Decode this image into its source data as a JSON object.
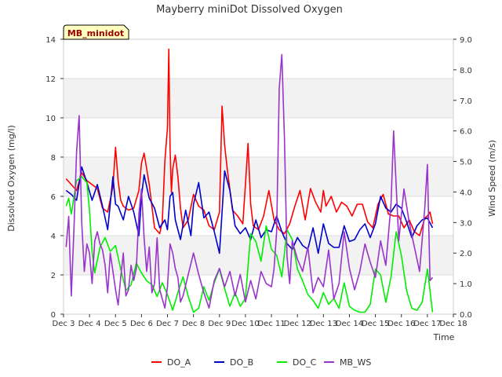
{
  "chart_data": {
    "type": "line",
    "title": "Mayberry miniDot Dissolved Oxygen",
    "xlabel": "Time",
    "ylabel": "Dissolved Oxygen (mg/l)",
    "y2label": "Wind Speed (m/s)",
    "site_badge": "MB_minidot",
    "xlim": [
      3,
      18
    ],
    "ylim": [
      0,
      14
    ],
    "y2lim": [
      0,
      9
    ],
    "x_tick_labels": [
      "Dec 3",
      "Dec 4",
      "Dec 5",
      "Dec 6",
      "Dec 7",
      "Dec 8",
      "Dec 9",
      "Dec 10",
      "Dec 11",
      "Dec 12",
      "Dec 13",
      "Dec 14",
      "Dec 15",
      "Dec 16",
      "Dec 17",
      "Dec 18"
    ],
    "y_tick_labels": [
      "0",
      "2",
      "4",
      "6",
      "8",
      "10",
      "12",
      "14"
    ],
    "y2_tick_labels": [
      "0.0",
      "1.0",
      "2.0",
      "3.0",
      "4.0",
      "5.0",
      "6.0",
      "7.0",
      "8.0",
      "9.0"
    ],
    "background_bands": true,
    "legend_position": "bottom",
    "series": [
      {
        "name": "DO_A",
        "color": "#ff0000",
        "axis": "left",
        "x": [
          3.1,
          3.3,
          3.5,
          3.7,
          3.9,
          4.1,
          4.3,
          4.5,
          4.7,
          4.9,
          5.0,
          5.1,
          5.2,
          5.3,
          5.5,
          5.7,
          5.9,
          6.0,
          6.1,
          6.3,
          6.5,
          6.7,
          6.8,
          6.9,
          7.0,
          7.05,
          7.1,
          7.15,
          7.2,
          7.3,
          7.4,
          7.5,
          7.6,
          7.8,
          8.0,
          8.2,
          8.4,
          8.6,
          8.8,
          9.0,
          9.1,
          9.2,
          9.3,
          9.5,
          9.7,
          9.9,
          10.0,
          10.1,
          10.2,
          10.3,
          10.5,
          10.7,
          10.9,
          11.1,
          11.3,
          11.5,
          11.7,
          11.9,
          12.1,
          12.3,
          12.5,
          12.7,
          12.9,
          13.0,
          13.1,
          13.3,
          13.5,
          13.7,
          13.9,
          14.1,
          14.3,
          14.5,
          14.7,
          14.9,
          15.1,
          15.3,
          15.5,
          15.7,
          15.9,
          16.1,
          16.3,
          16.5,
          16.7,
          16.9,
          17.0,
          17.1,
          17.2
        ],
        "y": [
          6.9,
          6.6,
          6.3,
          7.2,
          6.8,
          6.6,
          6.4,
          5.4,
          5.2,
          6.5,
          8.5,
          6.8,
          5.8,
          5.5,
          5.3,
          5.4,
          6.3,
          7.7,
          8.2,
          6.6,
          4.4,
          4.1,
          4.7,
          7.8,
          9.5,
          13.5,
          8.5,
          6.2,
          7.4,
          8.1,
          7.0,
          5.4,
          4.4,
          4.8,
          6.1,
          5.5,
          5.3,
          4.5,
          4.3,
          5.2,
          10.6,
          8.6,
          7.4,
          5.3,
          5.0,
          4.6,
          6.6,
          8.7,
          5.6,
          4.5,
          4.3,
          5.0,
          6.3,
          4.8,
          4.3,
          4.1,
          4.6,
          5.5,
          6.3,
          4.8,
          6.4,
          5.7,
          5.2,
          6.3,
          5.5,
          6.0,
          5.2,
          5.7,
          5.5,
          5.0,
          5.6,
          5.6,
          4.7,
          4.4,
          5.6,
          6.1,
          5.1,
          5.0,
          5.0,
          4.4,
          4.8,
          4.2,
          4.0,
          4.9,
          5.0,
          5.2,
          4.6
        ]
      },
      {
        "name": "DO_B",
        "color": "#0000cc",
        "axis": "left",
        "x": [
          3.1,
          3.3,
          3.5,
          3.7,
          3.9,
          4.1,
          4.3,
          4.5,
          4.7,
          4.9,
          5.0,
          5.1,
          5.3,
          5.5,
          5.7,
          5.9,
          6.0,
          6.1,
          6.3,
          6.5,
          6.7,
          6.9,
          7.0,
          7.1,
          7.2,
          7.3,
          7.5,
          7.7,
          7.9,
          8.0,
          8.2,
          8.4,
          8.6,
          8.8,
          9.0,
          9.2,
          9.4,
          9.6,
          9.8,
          10.0,
          10.2,
          10.4,
          10.6,
          10.8,
          11.0,
          11.2,
          11.4,
          11.6,
          11.8,
          12.0,
          12.2,
          12.4,
          12.6,
          12.8,
          13.0,
          13.2,
          13.4,
          13.6,
          13.8,
          14.0,
          14.2,
          14.4,
          14.6,
          14.8,
          15.0,
          15.2,
          15.4,
          15.6,
          15.8,
          16.0,
          16.2,
          16.4,
          16.6,
          16.8,
          17.0,
          17.2
        ],
        "y": [
          6.3,
          6.1,
          5.8,
          7.5,
          6.7,
          5.8,
          6.6,
          5.5,
          4.3,
          7.0,
          5.6,
          5.5,
          4.8,
          6.0,
          5.2,
          4.0,
          6.0,
          7.1,
          5.9,
          5.4,
          4.4,
          4.8,
          4.3,
          6.0,
          6.2,
          4.8,
          3.8,
          5.3,
          4.0,
          5.6,
          6.7,
          4.9,
          5.2,
          4.2,
          3.1,
          7.3,
          6.3,
          4.5,
          4.1,
          4.4,
          3.8,
          4.8,
          3.9,
          4.3,
          4.2,
          5.0,
          4.2,
          3.6,
          3.3,
          3.9,
          3.5,
          3.3,
          4.4,
          3.1,
          4.6,
          3.6,
          3.4,
          3.4,
          4.5,
          3.7,
          3.8,
          4.3,
          4.6,
          3.9,
          4.6,
          6.0,
          5.4,
          5.2,
          5.6,
          5.4,
          4.7,
          3.9,
          4.5,
          4.8,
          4.9,
          4.4
        ]
      },
      {
        "name": "DO_C",
        "color": "#00ee00",
        "axis": "left",
        "x": [
          3.1,
          3.2,
          3.3,
          3.5,
          3.7,
          3.9,
          4.0,
          4.1,
          4.2,
          4.4,
          4.6,
          4.8,
          5.0,
          5.2,
          5.4,
          5.6,
          5.8,
          6.0,
          6.2,
          6.4,
          6.6,
          6.8,
          7.0,
          7.2,
          7.4,
          7.6,
          7.8,
          8.0,
          8.2,
          8.4,
          8.6,
          8.8,
          9.0,
          9.2,
          9.4,
          9.6,
          9.8,
          10.0,
          10.2,
          10.4,
          10.6,
          10.8,
          11.0,
          11.2,
          11.4,
          11.6,
          11.8,
          12.0,
          12.2,
          12.4,
          12.6,
          12.8,
          13.0,
          13.2,
          13.4,
          13.6,
          13.8,
          14.0,
          14.2,
          14.4,
          14.6,
          14.8,
          15.0,
          15.2,
          15.4,
          15.6,
          15.8,
          16.0,
          16.2,
          16.4,
          16.6,
          16.8,
          17.0,
          17.2
        ],
        "y": [
          5.5,
          5.9,
          5.1,
          6.8,
          7.0,
          6.7,
          5.3,
          3.2,
          2.1,
          3.4,
          3.9,
          3.2,
          3.5,
          2.3,
          1.2,
          1.5,
          2.6,
          2.1,
          1.7,
          1.5,
          0.9,
          1.6,
          1.0,
          0.2,
          1.1,
          1.9,
          0.9,
          0.1,
          0.3,
          1.4,
          0.7,
          1.6,
          2.3,
          1.3,
          0.4,
          1.1,
          0.4,
          0.8,
          4.1,
          3.7,
          2.7,
          4.5,
          3.3,
          3.0,
          1.9,
          4.3,
          3.8,
          2.3,
          1.7,
          1.0,
          0.7,
          0.3,
          1.1,
          0.5,
          0.8,
          0.3,
          1.6,
          0.4,
          0.2,
          0.1,
          0.1,
          0.5,
          2.3,
          2.0,
          0.6,
          1.9,
          4.2,
          3.0,
          1.2,
          0.3,
          0.2,
          0.6,
          2.3,
          0.1
        ]
      },
      {
        "name": "MB_WS",
        "color": "#9933cc",
        "axis": "right",
        "x": [
          3.1,
          3.2,
          3.3,
          3.4,
          3.5,
          3.6,
          3.7,
          3.8,
          3.9,
          4.0,
          4.1,
          4.2,
          4.3,
          4.4,
          4.5,
          4.6,
          4.7,
          4.8,
          4.9,
          5.0,
          5.1,
          5.2,
          5.3,
          5.4,
          5.5,
          5.6,
          5.7,
          5.8,
          5.9,
          6.0,
          6.1,
          6.2,
          6.3,
          6.4,
          6.5,
          6.6,
          6.7,
          6.8,
          6.9,
          7.0,
          7.1,
          7.2,
          7.3,
          7.4,
          7.5,
          7.6,
          7.8,
          8.0,
          8.2,
          8.4,
          8.6,
          8.8,
          9.0,
          9.2,
          9.4,
          9.6,
          9.8,
          10.0,
          10.2,
          10.4,
          10.6,
          10.8,
          11.0,
          11.1,
          11.2,
          11.3,
          11.4,
          11.5,
          11.6,
          11.7,
          11.8,
          12.0,
          12.2,
          12.4,
          12.6,
          12.8,
          13.0,
          13.2,
          13.4,
          13.6,
          13.8,
          14.0,
          14.2,
          14.4,
          14.6,
          14.8,
          15.0,
          15.2,
          15.4,
          15.6,
          15.7,
          15.9,
          16.1,
          16.3,
          16.5,
          16.7,
          16.9,
          17.0,
          17.1,
          17.2
        ],
        "y": [
          2.2,
          3.2,
          0.6,
          2.8,
          5.3,
          6.5,
          3.0,
          1.4,
          2.3,
          2.0,
          1.0,
          2.4,
          2.7,
          2.3,
          2.1,
          1.6,
          0.7,
          2.0,
          1.4,
          0.8,
          0.3,
          1.2,
          2.0,
          0.6,
          0.8,
          1.6,
          1.1,
          1.5,
          3.3,
          4.1,
          2.5,
          1.4,
          2.2,
          0.7,
          1.0,
          2.5,
          0.8,
          0.5,
          0.2,
          0.9,
          2.3,
          2.0,
          1.5,
          1.2,
          0.4,
          0.6,
          1.3,
          2.0,
          1.3,
          0.7,
          0.2,
          1.1,
          1.5,
          0.9,
          1.4,
          0.6,
          1.3,
          0.4,
          1.1,
          0.5,
          1.4,
          1.0,
          0.9,
          1.5,
          2.7,
          7.4,
          8.5,
          5.8,
          1.9,
          1.0,
          2.4,
          1.8,
          1.4,
          2.2,
          0.7,
          1.2,
          0.9,
          2.1,
          0.5,
          1.0,
          2.7,
          1.5,
          0.8,
          1.4,
          2.3,
          1.7,
          1.2,
          2.4,
          1.6,
          3.6,
          6.0,
          2.4,
          4.1,
          3.0,
          2.2,
          1.4,
          3.5,
          4.9,
          1.1,
          1.2
        ]
      }
    ]
  }
}
